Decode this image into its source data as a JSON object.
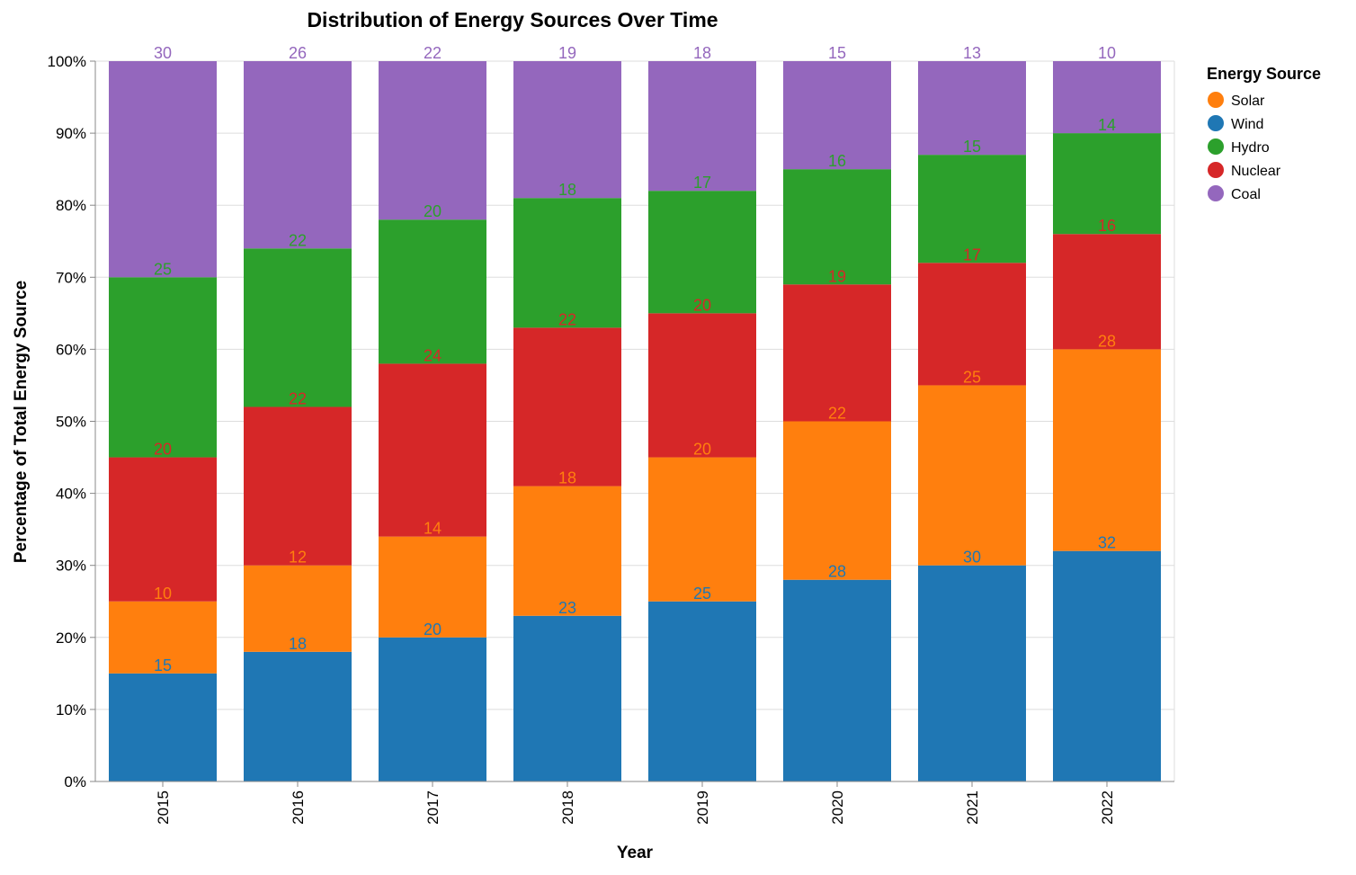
{
  "chart_data": {
    "type": "bar",
    "stacked": true,
    "normalized": true,
    "title": "Distribution of Energy Sources Over Time",
    "xlabel": "Year",
    "ylabel": "Percentage of Total Energy Source",
    "ylim": [
      0,
      100
    ],
    "y_ticks": [
      "0%",
      "10%",
      "20%",
      "30%",
      "40%",
      "50%",
      "60%",
      "70%",
      "80%",
      "90%",
      "100%"
    ],
    "grid": true,
    "legend": {
      "title": "Energy Source",
      "placement": "right"
    },
    "categories": [
      "2015",
      "2016",
      "2017",
      "2018",
      "2019",
      "2020",
      "2021",
      "2022"
    ],
    "series": [
      {
        "name": "Wind",
        "color": "#1f77b4",
        "values": [
          15,
          18,
          20,
          23,
          25,
          28,
          30,
          32
        ]
      },
      {
        "name": "Solar",
        "color": "#ff7f0e",
        "values": [
          10,
          12,
          14,
          18,
          20,
          22,
          25,
          28
        ]
      },
      {
        "name": "Nuclear",
        "color": "#d62728",
        "values": [
          20,
          22,
          24,
          22,
          20,
          19,
          17,
          16
        ]
      },
      {
        "name": "Hydro",
        "color": "#2ca02c",
        "values": [
          25,
          22,
          20,
          18,
          17,
          16,
          15,
          14
        ]
      },
      {
        "name": "Coal",
        "color": "#9467bd",
        "values": [
          30,
          26,
          22,
          19,
          18,
          15,
          13,
          10
        ]
      }
    ],
    "legend_order": [
      "Solar",
      "Wind",
      "Hydro",
      "Nuclear",
      "Coal"
    ]
  }
}
